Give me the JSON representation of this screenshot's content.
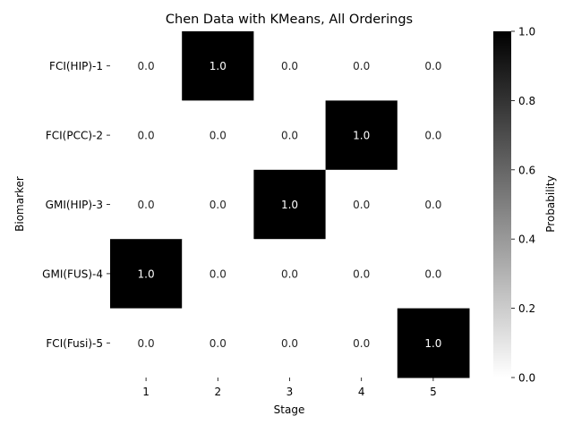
{
  "chart_data": {
    "type": "heatmap",
    "title": "Chen Data with KMeans, All Orderings",
    "xlabel": "Stage",
    "ylabel": "Biomarker",
    "x_categories": [
      "1",
      "2",
      "3",
      "4",
      "5"
    ],
    "y_categories": [
      "FCI(HIP)-1",
      "FCI(PCC)-2",
      "GMI(HIP)-3",
      "GMI(FUS)-4",
      "FCI(Fusi)-5"
    ],
    "values": [
      [
        0.0,
        1.0,
        0.0,
        0.0,
        0.0
      ],
      [
        0.0,
        0.0,
        0.0,
        1.0,
        0.0
      ],
      [
        0.0,
        0.0,
        1.0,
        0.0,
        0.0
      ],
      [
        1.0,
        0.0,
        0.0,
        0.0,
        0.0
      ],
      [
        0.0,
        0.0,
        0.0,
        0.0,
        1.0
      ]
    ],
    "value_range": [
      0,
      1
    ],
    "colormap": "white-to-black",
    "colorbar": {
      "label": "Probability",
      "ticks": [
        "0.0",
        "0.2",
        "0.4",
        "0.6",
        "0.8",
        "1.0"
      ]
    },
    "annotations": true
  }
}
